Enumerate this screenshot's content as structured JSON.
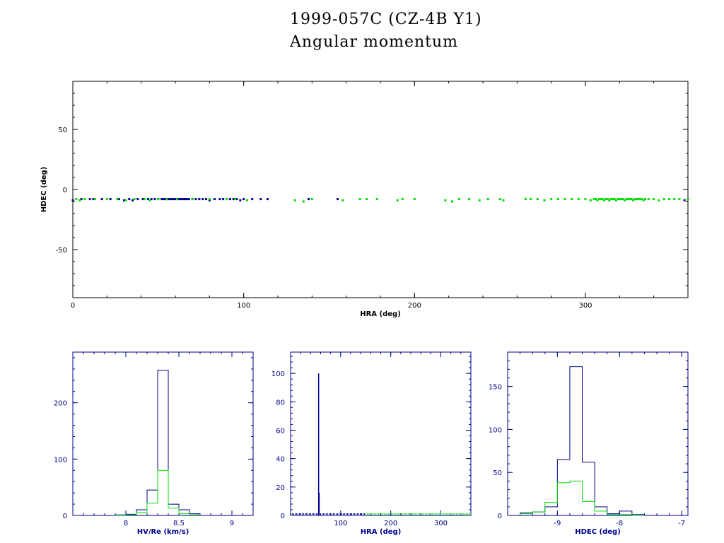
{
  "title": "1999-057C (CZ-4B Y1)",
  "subtitle": "Angular momentum",
  "colors": {
    "blue": "#00008b",
    "green": "#00dd00",
    "axis": "#000000"
  },
  "chart_data": [
    {
      "type": "scatter",
      "xlabel": "HRA (deg)",
      "ylabel": "HDEC (deg)",
      "xlim": [
        0,
        360
      ],
      "ylim": [
        -90,
        90
      ],
      "xticks": [
        "0",
        "100",
        "200",
        "300"
      ],
      "yticks": [
        "50",
        "0",
        "-50"
      ],
      "xtick_values": [
        0,
        100,
        200,
        300
      ],
      "ytick_values": [
        50,
        0,
        -50
      ],
      "series": [
        {
          "color": "blue",
          "x": [
            0,
            5,
            10,
            12,
            17,
            22,
            27,
            30,
            33,
            35,
            38,
            41,
            44,
            46,
            48,
            50,
            52,
            53,
            54,
            55,
            56,
            57,
            58,
            59,
            60,
            61,
            62,
            63,
            64,
            65,
            66,
            67,
            68,
            70,
            72,
            74,
            76,
            78,
            80,
            83,
            86,
            88,
            90,
            92,
            94,
            96,
            98,
            100,
            105,
            110,
            114,
            138,
            155,
            358
          ],
          "y": [
            -9,
            -8,
            -8,
            -8,
            -8,
            -8,
            -8,
            -9,
            -8,
            -9,
            -8,
            -8,
            -8,
            -8,
            -8,
            -8,
            -8,
            -8,
            -8,
            -8,
            -8,
            -8,
            -8,
            -8,
            -8,
            -8,
            -8,
            -8,
            -8,
            -8,
            -8,
            -8,
            -8,
            -8,
            -8,
            -8,
            -8,
            -8,
            -9,
            -8,
            -8,
            -8,
            -8,
            -8,
            -8,
            -8,
            -9,
            -8,
            -8,
            -8,
            -8,
            -8,
            -8,
            -9
          ]
        },
        {
          "color": "green",
          "x": [
            2,
            4,
            7,
            13,
            20,
            26,
            31,
            36,
            42,
            45,
            50,
            55,
            61,
            70,
            80,
            90,
            95,
            102,
            130,
            135,
            140,
            158,
            168,
            172,
            178,
            190,
            193,
            200,
            218,
            222,
            226,
            232,
            238,
            243,
            250,
            252,
            265,
            268,
            272,
            276,
            280,
            284,
            288,
            292,
            296,
            300,
            303,
            305,
            306,
            307,
            308,
            309,
            310,
            311,
            312,
            313,
            314,
            315,
            316,
            317,
            318,
            319,
            320,
            321,
            322,
            323,
            324,
            325,
            326,
            327,
            328,
            329,
            330,
            331,
            332,
            333,
            334,
            335,
            337,
            340,
            343,
            346,
            349,
            352,
            355,
            360
          ],
          "y": [
            -8,
            -9,
            -8,
            -8,
            -8,
            -8,
            -9,
            -8,
            -8,
            -9,
            -8,
            -8,
            -8,
            -8,
            -8,
            -8,
            -8,
            -9,
            -9,
            -10,
            -8,
            -9,
            -8,
            -8,
            -8,
            -9,
            -8,
            -8,
            -9,
            -10,
            -8,
            -8,
            -9,
            -8,
            -8,
            -9,
            -8,
            -8,
            -8,
            -9,
            -8,
            -8,
            -8,
            -8,
            -8,
            -8,
            -9,
            -8,
            -8,
            -9,
            -8,
            -8,
            -8,
            -9,
            -8,
            -8,
            -9,
            -8,
            -8,
            -8,
            -9,
            -8,
            -8,
            -8,
            -8,
            -9,
            -8,
            -8,
            -8,
            -8,
            -9,
            -8,
            -8,
            -8,
            -8,
            -8,
            -9,
            -8,
            -8,
            -8,
            -9,
            -8,
            -8,
            -8,
            -8,
            -8
          ]
        }
      ]
    },
    {
      "type": "histogram",
      "xlabel": "HV/Re (km/s)",
      "xlim": [
        7.5,
        9.2
      ],
      "ylim": [
        0,
        290
      ],
      "xticks": [
        "8",
        "8.5",
        "9"
      ],
      "xtick_values": [
        8,
        8.5,
        9
      ],
      "yticks": [
        "0",
        "100",
        "200"
      ],
      "ytick_values": [
        0,
        100,
        200
      ],
      "bin_edges": [
        7.9,
        8.0,
        8.1,
        8.2,
        8.3,
        8.4,
        8.5,
        8.6,
        8.7
      ],
      "series": [
        {
          "color": "blue",
          "values": [
            1,
            2,
            10,
            45,
            258,
            20,
            10,
            3
          ]
        },
        {
          "color": "green",
          "values": [
            0,
            1,
            5,
            22,
            80,
            13,
            3,
            1
          ]
        }
      ]
    },
    {
      "type": "histogram",
      "xlabel": "HRA (deg)",
      "xlim": [
        0,
        360
      ],
      "ylim": [
        0,
        115
      ],
      "xticks": [
        "100",
        "200",
        "300"
      ],
      "xtick_values": [
        100,
        200,
        300
      ],
      "yticks": [
        "0",
        "20",
        "40",
        "60",
        "80",
        "100"
      ],
      "ytick_values": [
        0,
        20,
        40,
        60,
        80,
        100
      ],
      "spikes": [
        {
          "color": "blue",
          "x": 56,
          "value": 100
        },
        {
          "color": "blue",
          "x": 57,
          "value": 16
        }
      ],
      "baseline": [
        {
          "color": "blue",
          "from": 0,
          "to": 150,
          "value": 1
        },
        {
          "color": "green",
          "from": 150,
          "to": 360,
          "value": 1
        }
      ]
    },
    {
      "type": "histogram",
      "xlabel": "HDEC (deg)",
      "xlim": [
        -9.8,
        -6.9
      ],
      "ylim": [
        0,
        190
      ],
      "xticks": [
        "-9",
        "-8",
        "-7"
      ],
      "xtick_values": [
        -9,
        -8,
        -7
      ],
      "yticks": [
        "0",
        "50",
        "100",
        "150"
      ],
      "ytick_values": [
        0,
        50,
        100,
        150
      ],
      "bin_edges": [
        -9.6,
        -9.4,
        -9.2,
        -9.0,
        -8.8,
        -8.6,
        -8.4,
        -8.2,
        -8.0,
        -7.8,
        -7.6
      ],
      "series": [
        {
          "color": "blue",
          "values": [
            3,
            4,
            10,
            65,
            173,
            62,
            10,
            2,
            5,
            1
          ]
        },
        {
          "color": "green",
          "values": [
            2,
            4,
            15,
            38,
            40,
            16,
            5,
            1,
            1,
            0
          ]
        }
      ]
    }
  ]
}
